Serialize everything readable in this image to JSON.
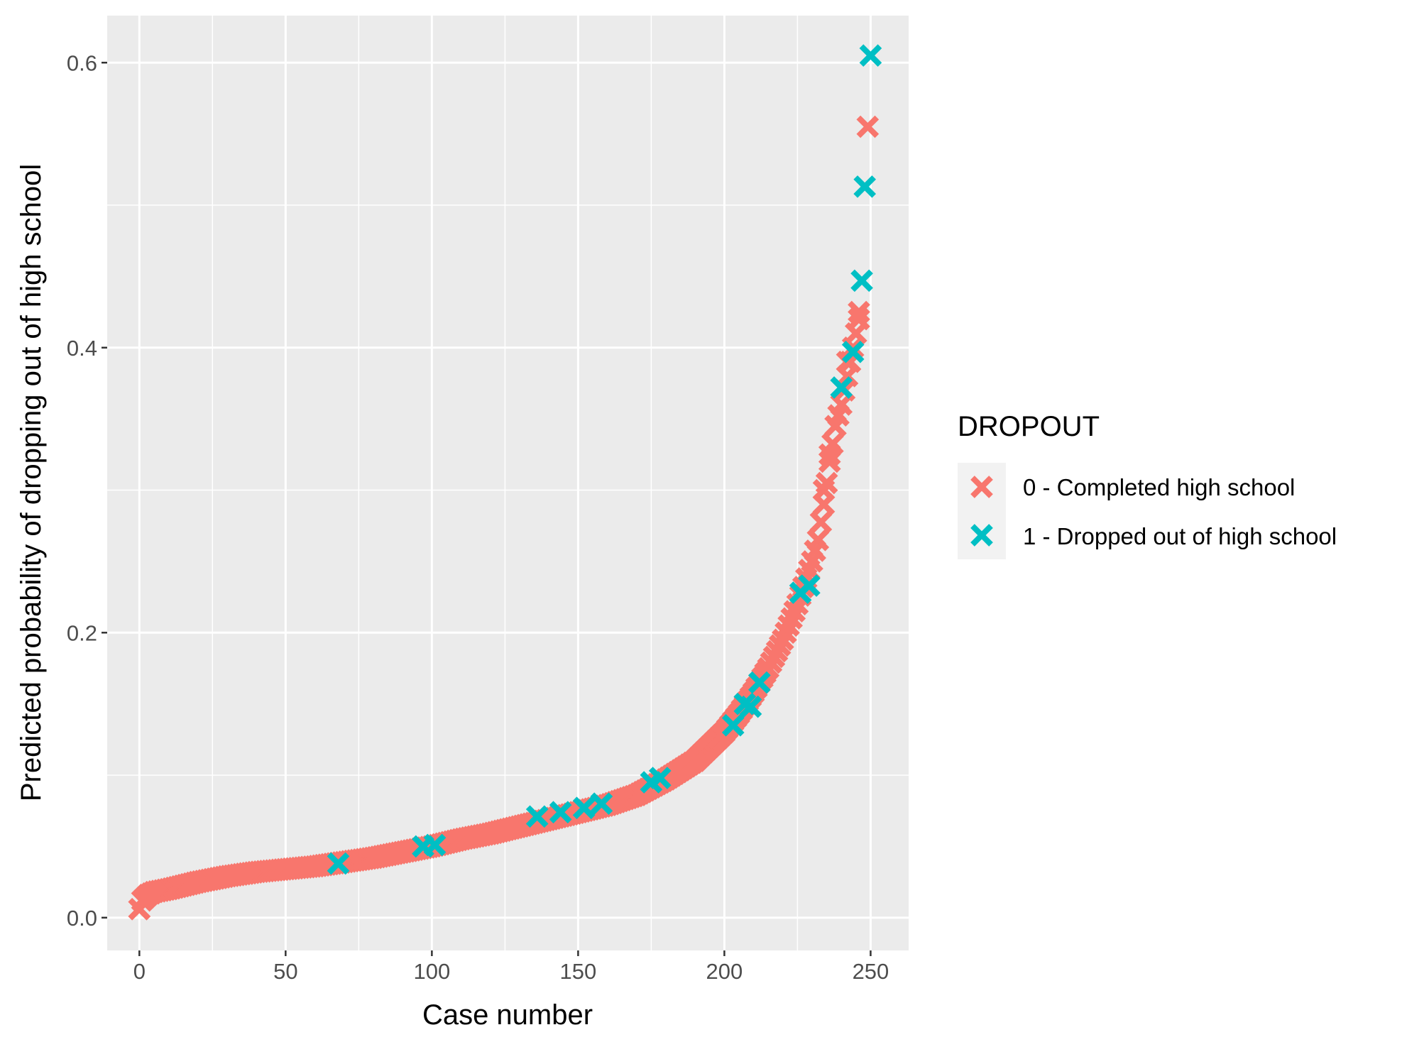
{
  "chart_data": {
    "type": "scatter",
    "marker": "x",
    "xlabel": "Case number",
    "ylabel": "Predicted probability of dropping out of high school",
    "xlim": [
      -11,
      263
    ],
    "ylim": [
      -0.023,
      0.633
    ],
    "x_ticks": [
      0,
      50,
      100,
      150,
      200,
      250
    ],
    "x_tick_labels": [
      "0",
      "50",
      "100",
      "150",
      "200",
      "250"
    ],
    "y_ticks": [
      0.0,
      0.2,
      0.4,
      0.6
    ],
    "y_tick_labels": [
      "0.0",
      "0.2",
      "0.4",
      "0.6"
    ],
    "grid": true,
    "legend_position": "right",
    "legend": {
      "title": "DROPOUT",
      "entries": [
        "0 - Completed high school",
        "1 - Dropped out of high school"
      ]
    },
    "colors": {
      "panel": "#ebebeb",
      "grid": "#ffffff",
      "series0": "#f8766d",
      "series1": "#00bfc4"
    },
    "series": [
      {
        "name": "0 - Completed high school",
        "curve": {
          "x": [
            0,
            1,
            3,
            5,
            10,
            20,
            30,
            40,
            50,
            60,
            70,
            80,
            90,
            100,
            110,
            120,
            130,
            140,
            150,
            160,
            170,
            180,
            190,
            200,
            205,
            210,
            215,
            220,
            225,
            230,
            232,
            234,
            236,
            238,
            240,
            242,
            244,
            246,
            248,
            250
          ],
          "y": [
            0.006,
            0.012,
            0.016,
            0.018,
            0.02,
            0.025,
            0.029,
            0.032,
            0.034,
            0.036,
            0.039,
            0.042,
            0.046,
            0.05,
            0.055,
            0.059,
            0.064,
            0.069,
            0.074,
            0.079,
            0.086,
            0.097,
            0.11,
            0.13,
            0.143,
            0.158,
            0.175,
            0.195,
            0.22,
            0.25,
            0.265,
            0.29,
            0.32,
            0.345,
            0.36,
            0.38,
            0.4,
            0.42,
            0.46,
            0.52
          ]
        },
        "points": [
          {
            "x": 0,
            "y": 0.006
          },
          {
            "x": 234,
            "y": 0.3
          },
          {
            "x": 236,
            "y": 0.325
          },
          {
            "x": 242,
            "y": 0.39
          },
          {
            "x": 246,
            "y": 0.425
          },
          {
            "x": 249,
            "y": 0.555
          }
        ]
      },
      {
        "name": "1 - Dropped out of high school",
        "points": [
          {
            "x": 68,
            "y": 0.038
          },
          {
            "x": 97,
            "y": 0.05
          },
          {
            "x": 101,
            "y": 0.051
          },
          {
            "x": 136,
            "y": 0.071
          },
          {
            "x": 144,
            "y": 0.074
          },
          {
            "x": 152,
            "y": 0.077
          },
          {
            "x": 158,
            "y": 0.08
          },
          {
            "x": 175,
            "y": 0.095
          },
          {
            "x": 178,
            "y": 0.098
          },
          {
            "x": 203,
            "y": 0.135
          },
          {
            "x": 207,
            "y": 0.15
          },
          {
            "x": 209,
            "y": 0.148
          },
          {
            "x": 212,
            "y": 0.165
          },
          {
            "x": 226,
            "y": 0.228
          },
          {
            "x": 229,
            "y": 0.233
          },
          {
            "x": 240,
            "y": 0.372
          },
          {
            "x": 244,
            "y": 0.397
          },
          {
            "x": 247,
            "y": 0.447
          },
          {
            "x": 248,
            "y": 0.513
          },
          {
            "x": 250,
            "y": 0.605
          }
        ]
      }
    ]
  }
}
